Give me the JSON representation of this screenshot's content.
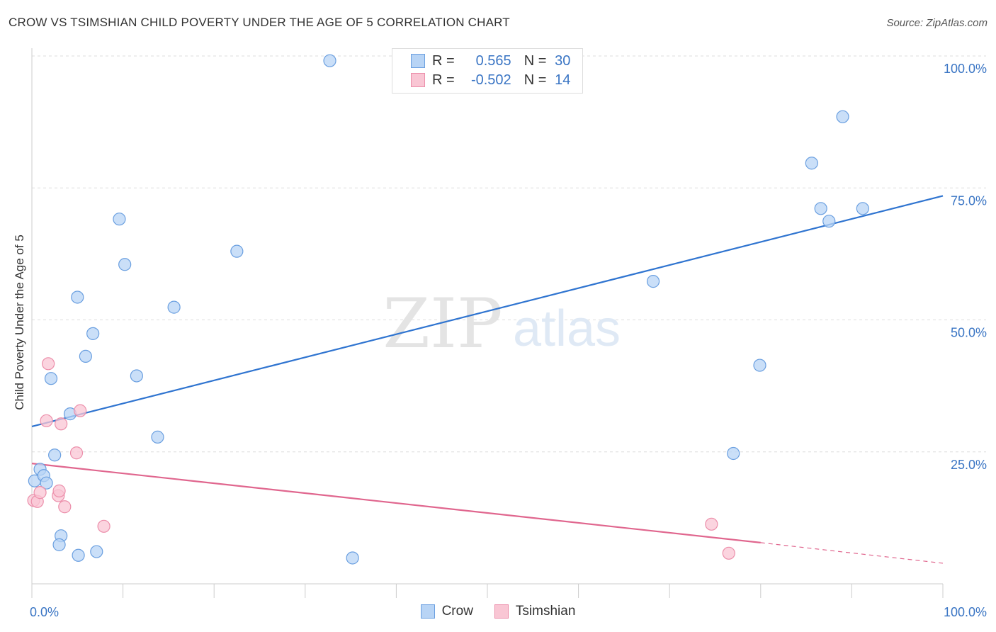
{
  "title": "CROW VS TSIMSHIAN CHILD POVERTY UNDER THE AGE OF 5 CORRELATION CHART",
  "source": "Source: ZipAtlas.com",
  "watermark": {
    "zip": "ZIP",
    "atlas": "atlas"
  },
  "stats": [
    {
      "r_label": "R =",
      "r_value": "0.565",
      "n_label": "N =",
      "n_value": "30",
      "fill": "#b8d4f5",
      "stroke": "#6a9fe0"
    },
    {
      "r_label": "R =",
      "r_value": "-0.502",
      "n_label": "N =",
      "n_value": "14",
      "fill": "#f9c6d4",
      "stroke": "#ec8eaa"
    }
  ],
  "legend": [
    {
      "label": "Crow",
      "fill": "#b8d4f5",
      "stroke": "#6a9fe0"
    },
    {
      "label": "Tsimshian",
      "fill": "#f9c6d4",
      "stroke": "#ec8eaa"
    }
  ],
  "chart_data": {
    "type": "scatter",
    "title": "CROW VS TSIMSHIAN CHILD POVERTY UNDER THE AGE OF 5 CORRELATION CHART",
    "xlabel": "",
    "ylabel": "Child Poverty Under the Age of 5",
    "xlim": [
      0,
      100
    ],
    "ylim": [
      0,
      100
    ],
    "x_tick_labels": {
      "left": "0.0%",
      "right": "100.0%"
    },
    "y_ticks": [
      {
        "value": 25,
        "label": "25.0%"
      },
      {
        "value": 50,
        "label": "50.0%"
      },
      {
        "value": 75,
        "label": "75.0%"
      },
      {
        "value": 100,
        "label": "100.0%"
      }
    ],
    "grid": true,
    "series": [
      {
        "name": "Crow",
        "color": "#6a9fe0",
        "fill": "#b8d4f5",
        "line_color": "#2f74d0",
        "points": [
          [
            0.3,
            19.5
          ],
          [
            0.9,
            21.7
          ],
          [
            1.3,
            20.5
          ],
          [
            1.6,
            19.1
          ],
          [
            2.1,
            38.9
          ],
          [
            2.5,
            24.4
          ],
          [
            3.2,
            9.1
          ],
          [
            3.0,
            7.4
          ],
          [
            4.2,
            32.2
          ],
          [
            5.0,
            54.3
          ],
          [
            5.1,
            5.4
          ],
          [
            5.9,
            43.1
          ],
          [
            6.7,
            47.4
          ],
          [
            7.1,
            6.1
          ],
          [
            9.6,
            69.1
          ],
          [
            10.2,
            60.5
          ],
          [
            11.5,
            39.4
          ],
          [
            13.8,
            27.8
          ],
          [
            15.6,
            52.4
          ],
          [
            22.5,
            63.0
          ],
          [
            32.7,
            99.1
          ],
          [
            35.2,
            4.9
          ],
          [
            68.2,
            57.3
          ],
          [
            77.0,
            24.7
          ],
          [
            79.9,
            41.4
          ],
          [
            85.6,
            79.7
          ],
          [
            86.6,
            71.1
          ],
          [
            87.5,
            68.7
          ],
          [
            89.0,
            88.5
          ],
          [
            91.2,
            71.1
          ]
        ],
        "trend": {
          "x": [
            0,
            100
          ],
          "y": [
            29.8,
            73.5
          ]
        }
      },
      {
        "name": "Tsimshian",
        "color": "#ec8eaa",
        "fill": "#f9c6d4",
        "line_color": "#e0668e",
        "points": [
          [
            0.2,
            15.8
          ],
          [
            0.6,
            15.6
          ],
          [
            0.9,
            17.3
          ],
          [
            1.6,
            30.9
          ],
          [
            1.8,
            41.7
          ],
          [
            2.9,
            16.7
          ],
          [
            3.0,
            17.6
          ],
          [
            3.2,
            30.3
          ],
          [
            3.6,
            14.6
          ],
          [
            4.9,
            24.8
          ],
          [
            5.3,
            32.8
          ],
          [
            7.9,
            10.9
          ],
          [
            74.6,
            11.3
          ],
          [
            76.5,
            5.8
          ]
        ],
        "trend": {
          "x": [
            0,
            80,
            100
          ],
          "y": [
            22.8,
            7.8,
            3.9
          ],
          "solid_until": 80
        }
      }
    ]
  }
}
